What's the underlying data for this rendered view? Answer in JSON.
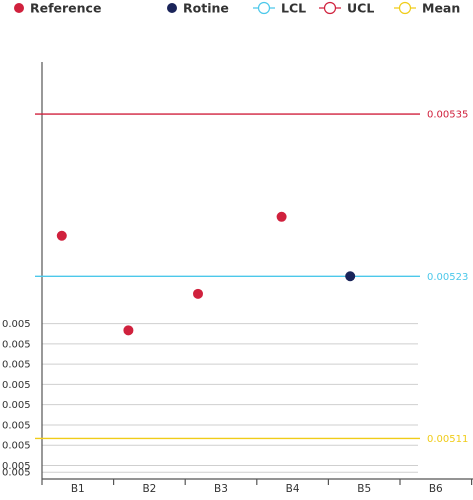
{
  "chart_data": {
    "type": "scatter",
    "title": "",
    "xlabel": "",
    "ylabel": "",
    "categories": [
      "B1",
      "B2",
      "B3",
      "B4",
      "B5",
      "B6"
    ],
    "ylim": [
      0.00508,
      0.00541
    ],
    "y_tick_values": [
      0.005085,
      0.00509,
      0.005105,
      0.00512,
      0.005135,
      0.00515,
      0.005165,
      0.00518,
      0.005195
    ],
    "y_tick_labels": [
      "0.005",
      "0.005",
      "0.005",
      "0.005",
      "0.005",
      "0.005",
      "0.005",
      "0.005",
      "0.005"
    ],
    "grid": true,
    "legend_position": "top",
    "legend": [
      {
        "label": "Reference",
        "kind": "dot",
        "color": "#d0213d"
      },
      {
        "label": "Rotine",
        "kind": "dot",
        "color": "#1a2459"
      },
      {
        "label": "LCL",
        "kind": "line",
        "color": "#4cc8ea"
      },
      {
        "label": "UCL",
        "kind": "line",
        "color": "#d0213d"
      },
      {
        "label": "Mean",
        "kind": "line",
        "color": "#f0cc19"
      }
    ],
    "series": [
      {
        "name": "Reference",
        "color": "#d0213d",
        "points": [
          {
            "x": "B1",
            "y": 0.00526
          },
          {
            "x": "B2",
            "y": 0.00519
          },
          {
            "x": "B3",
            "y": 0.005217
          },
          {
            "x": "B4",
            "y": 0.005274
          }
        ]
      },
      {
        "name": "Rotine",
        "color": "#1a2459",
        "points": [
          {
            "x": "B5",
            "y": 0.00523
          }
        ]
      }
    ],
    "reference_lines": [
      {
        "name": "UCL",
        "value": 0.00535,
        "label": "0.00535",
        "color": "#d0213d"
      },
      {
        "name": "LCL",
        "value": 0.00523,
        "label": "0.00523",
        "color": "#4cc8ea"
      },
      {
        "name": "Mean",
        "value": 0.00511,
        "label": "0.00511",
        "color": "#f0cc19"
      }
    ]
  }
}
